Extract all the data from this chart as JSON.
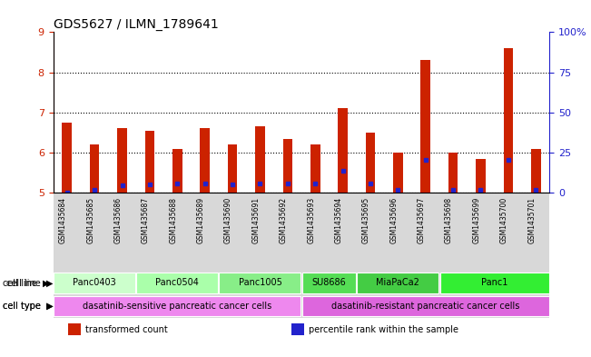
{
  "title": "GDS5627 / ILMN_1789641",
  "samples": [
    "GSM1435684",
    "GSM1435685",
    "GSM1435686",
    "GSM1435687",
    "GSM1435688",
    "GSM1435689",
    "GSM1435690",
    "GSM1435691",
    "GSM1435692",
    "GSM1435693",
    "GSM1435694",
    "GSM1435695",
    "GSM1435696",
    "GSM1435697",
    "GSM1435698",
    "GSM1435699",
    "GSM1435700",
    "GSM1435701"
  ],
  "transformed_count": [
    6.75,
    6.2,
    6.6,
    6.55,
    6.1,
    6.6,
    6.2,
    6.65,
    6.35,
    6.2,
    7.1,
    6.5,
    6.0,
    8.3,
    6.0,
    5.85,
    8.6,
    6.1
  ],
  "percentile_rank": [
    5.0,
    5.08,
    5.18,
    5.2,
    5.22,
    5.22,
    5.2,
    5.24,
    5.22,
    5.22,
    5.55,
    5.22,
    5.08,
    5.82,
    5.08,
    5.08,
    5.83,
    5.08
  ],
  "ylim_left": [
    5,
    9
  ],
  "ylim_right": [
    0,
    100
  ],
  "yticks_left": [
    5,
    6,
    7,
    8,
    9
  ],
  "yticks_right": [
    0,
    25,
    50,
    75,
    100
  ],
  "bar_color": "#cc2200",
  "marker_color": "#2222cc",
  "bar_bottom": 5.0,
  "cell_lines": [
    {
      "label": "Panc0403",
      "start": 0,
      "end": 3,
      "color": "#ccffcc"
    },
    {
      "label": "Panc0504",
      "start": 3,
      "end": 6,
      "color": "#aaffaa"
    },
    {
      "label": "Panc1005",
      "start": 6,
      "end": 9,
      "color": "#88ee88"
    },
    {
      "label": "SU8686",
      "start": 9,
      "end": 11,
      "color": "#55dd55"
    },
    {
      "label": "MiaPaCa2",
      "start": 11,
      "end": 14,
      "color": "#44cc44"
    },
    {
      "label": "Panc1",
      "start": 14,
      "end": 18,
      "color": "#33ee33"
    }
  ],
  "cell_types": [
    {
      "label": "dasatinib-sensitive pancreatic cancer cells",
      "start": 0,
      "end": 9,
      "color": "#ee88ee"
    },
    {
      "label": "dasatinib-resistant pancreatic cancer cells",
      "start": 9,
      "end": 18,
      "color": "#dd66dd"
    }
  ],
  "legend_items": [
    {
      "color": "#cc2200",
      "label": "transformed count"
    },
    {
      "color": "#2222cc",
      "label": "percentile rank within the sample"
    }
  ],
  "grid_color": "black",
  "bg_color": "white",
  "left_axis_color": "#cc2200",
  "right_axis_color": "#2222cc"
}
